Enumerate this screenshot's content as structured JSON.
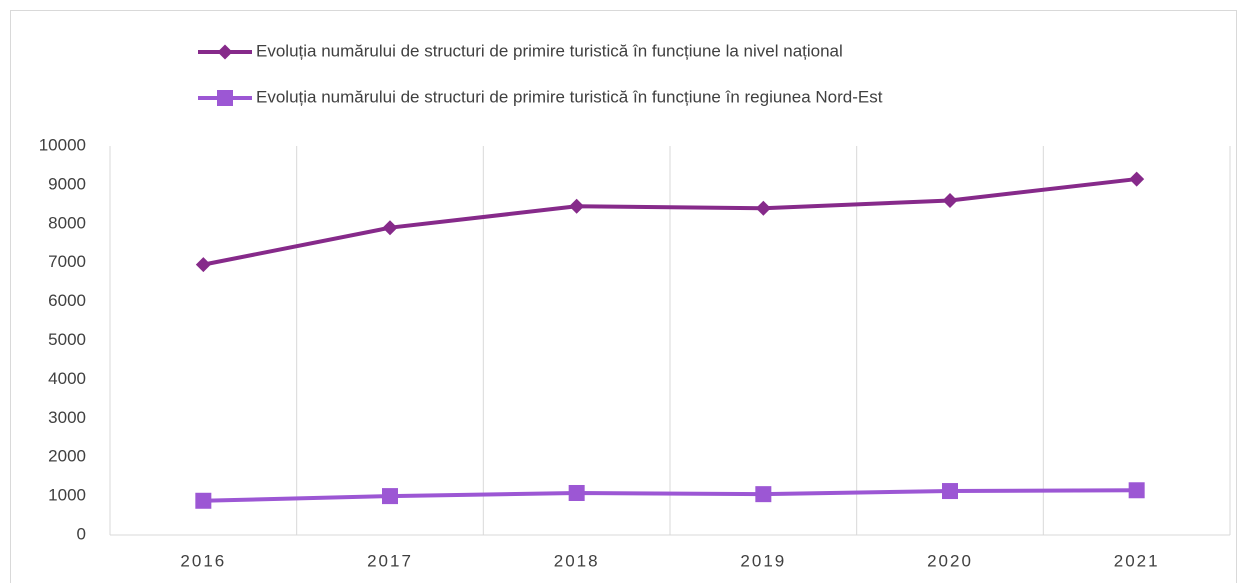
{
  "chart_data": {
    "type": "line",
    "categories": [
      "2016",
      "2017",
      "2018",
      "2019",
      "2020",
      "2021"
    ],
    "series": [
      {
        "name": "Evoluția numărului de structuri de primire turistică în funcțiune la nivel național",
        "color": "#862a8a",
        "marker": "diamond",
        "values": [
          6950,
          7900,
          8450,
          8400,
          8600,
          9150
        ]
      },
      {
        "name": "Evoluția numărului de structuri de primire turistică în funcțiune în regiunea Nord-Est",
        "color": "#9c57d4",
        "marker": "square",
        "values": [
          880,
          1000,
          1080,
          1050,
          1130,
          1150
        ]
      }
    ],
    "ylim": [
      0,
      10000
    ],
    "yticks": [
      0,
      1000,
      2000,
      3000,
      4000,
      5000,
      6000,
      7000,
      8000,
      9000,
      10000
    ],
    "grid": true,
    "legend": "top"
  }
}
